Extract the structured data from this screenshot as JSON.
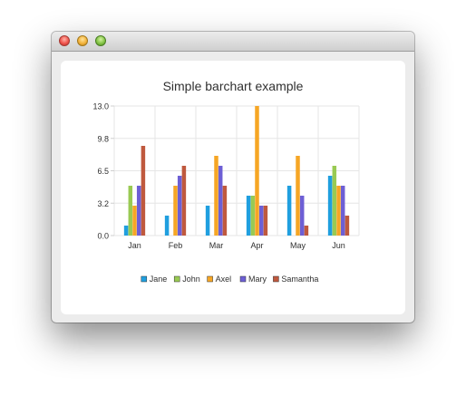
{
  "window": {
    "title": ""
  },
  "chart_data": {
    "type": "bar",
    "title": "Simple barchart example",
    "categories": [
      "Jan",
      "Feb",
      "Mar",
      "Apr",
      "May",
      "Jun"
    ],
    "yticks": [
      "0.0",
      "3.2",
      "6.5",
      "9.8",
      "13.0"
    ],
    "ylim": [
      0,
      13
    ],
    "grid": true,
    "legend_position": "bottom",
    "series": [
      {
        "name": "Jane",
        "color": "#209fdf",
        "values": [
          1,
          2,
          3,
          4,
          5,
          6
        ]
      },
      {
        "name": "John",
        "color": "#99ca53",
        "values": [
          5,
          0,
          0,
          4,
          0,
          7
        ]
      },
      {
        "name": "Axel",
        "color": "#f6a625",
        "values": [
          3,
          5,
          8,
          13,
          8,
          5
        ]
      },
      {
        "name": "Mary",
        "color": "#6d5fd5",
        "values": [
          5,
          6,
          7,
          3,
          4,
          5
        ]
      },
      {
        "name": "Samantha",
        "color": "#bf593e",
        "values": [
          9,
          7,
          5,
          3,
          1,
          2
        ]
      }
    ]
  }
}
